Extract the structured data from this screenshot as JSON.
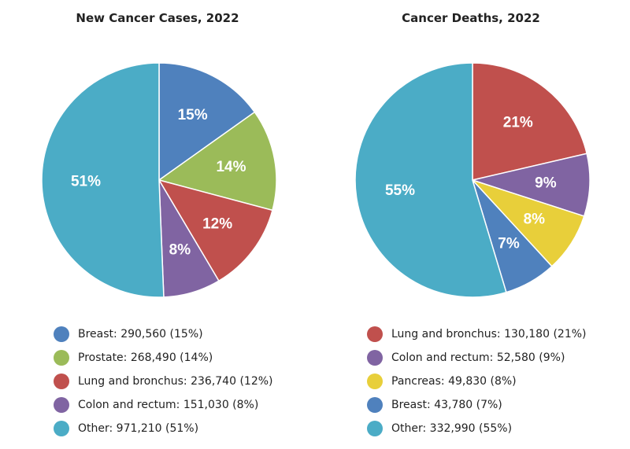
{
  "chart_data": [
    {
      "type": "pie",
      "title": "New Cancer Cases, 2022",
      "slices": [
        {
          "label": "Breast",
          "value": 290560,
          "pct_label": "15%",
          "legend": "Breast: 290,560 (15%)",
          "color": "#4f81bd"
        },
        {
          "label": "Prostate",
          "value": 268490,
          "pct_label": "14%",
          "legend": "Prostate: 268,490 (14%)",
          "color": "#9bbb59"
        },
        {
          "label": "Lung and bronchus",
          "value": 236740,
          "pct_label": "12%",
          "legend": "Lung and bronchus: 236,740 (12%)",
          "color": "#c0504d"
        },
        {
          "label": "Colon and rectum",
          "value": 151030,
          "pct_label": "8%",
          "legend": "Colon and rectum: 151,030 (8%)",
          "color": "#8064a2"
        },
        {
          "label": "Other",
          "value": 971210,
          "pct_label": "51%",
          "legend": "Other: 971,210 (51%)",
          "color": "#4bacc6"
        }
      ]
    },
    {
      "type": "pie",
      "title": "Cancer Deaths, 2022",
      "slices": [
        {
          "label": "Lung and bronchus",
          "value": 130180,
          "pct_label": "21%",
          "legend": "Lung and bronchus: 130,180 (21%)",
          "color": "#c0504d"
        },
        {
          "label": "Colon and rectum",
          "value": 52580,
          "pct_label": "9%",
          "legend": "Colon and rectum: 52,580 (9%)",
          "color": "#8064a2"
        },
        {
          "label": "Pancreas",
          "value": 49830,
          "pct_label": "8%",
          "legend": "Pancreas: 49,830 (8%)",
          "color": "#e8cf3a"
        },
        {
          "label": "Breast",
          "value": 43780,
          "pct_label": "7%",
          "legend": "Breast: 43,780 (7%)",
          "color": "#4f81bd"
        },
        {
          "label": "Other",
          "value": 332990,
          "pct_label": "55%",
          "legend": "Other: 332,990 (55%)",
          "color": "#4bacc6"
        }
      ]
    }
  ]
}
